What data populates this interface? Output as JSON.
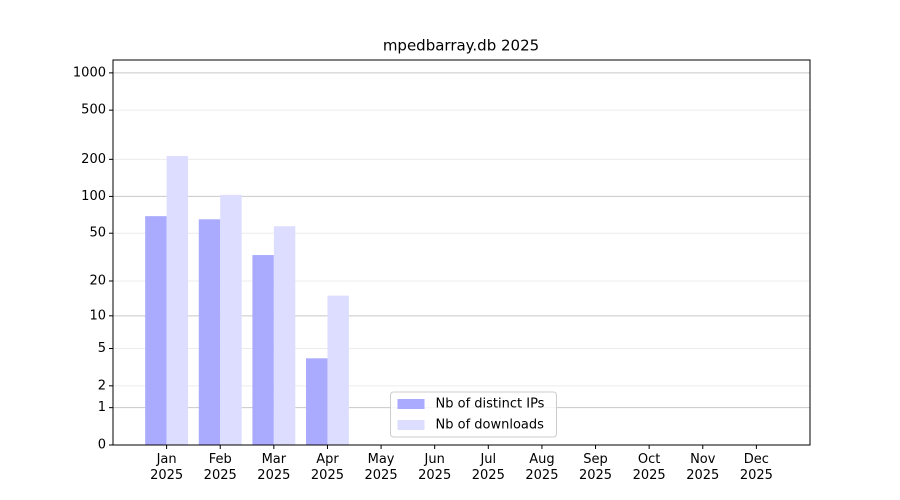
{
  "chart_data": {
    "type": "bar",
    "title": "mpedbarray.db 2025",
    "categories": [
      "Jan\n2025",
      "Feb\n2025",
      "Mar\n2025",
      "Apr\n2025",
      "May\n2025",
      "Jun\n2025",
      "Jul\n2025",
      "Aug\n2025",
      "Sep\n2025",
      "Oct\n2025",
      "Nov\n2025",
      "Dec\n2025"
    ],
    "series": [
      {
        "name": "Nb of distinct IPs",
        "color": "#aaaaff",
        "values": [
          69,
          65,
          33,
          4,
          0,
          0,
          0,
          0,
          0,
          0,
          0,
          0
        ]
      },
      {
        "name": "Nb of downloads",
        "color": "#ddddff",
        "values": [
          213,
          103,
          57,
          15,
          0,
          0,
          0,
          0,
          0,
          0,
          0,
          0
        ]
      }
    ],
    "yscale": "log1p",
    "ylim": [
      0,
      1270
    ],
    "yticks": [
      0,
      1,
      2,
      5,
      10,
      20,
      50,
      100,
      200,
      500,
      1000
    ],
    "grid": true,
    "legend": "lower center"
  }
}
